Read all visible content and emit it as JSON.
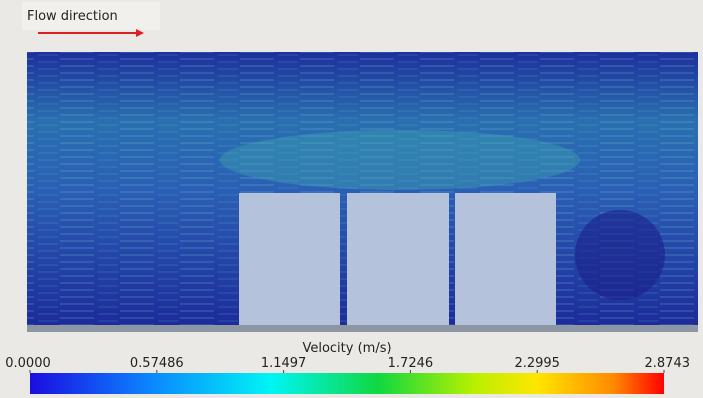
{
  "flow_label": "Flow direction",
  "colorbar": {
    "title": "Velocity (m/s)",
    "range": [
      0,
      2.8743
    ],
    "ticks": [
      {
        "value": 0,
        "label": "0.0000"
      },
      {
        "value": 0.57486,
        "label": "0.57486"
      },
      {
        "value": 1.1497,
        "label": "1.1497"
      },
      {
        "value": 1.7246,
        "label": "1.7246"
      },
      {
        "value": 2.2995,
        "label": "2.2995"
      },
      {
        "value": 2.8743,
        "label": "2.8743"
      }
    ]
  }
}
